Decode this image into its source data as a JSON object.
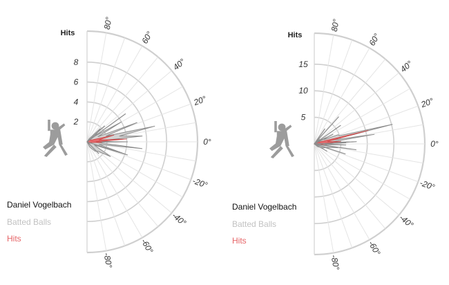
{
  "chart_data": [
    {
      "type": "radial-area",
      "player": "Daniel Vogelbach",
      "r_axis_title": "Hits",
      "r_ticks": [
        "2",
        "4",
        "6",
        "8"
      ],
      "r_max": 8,
      "angle_ticks": [
        "80°",
        "60°",
        "40°",
        "20°",
        "0°",
        "-20°",
        "-40°",
        "-60°",
        "-80°"
      ],
      "legend": [
        "Daniel Vogelbach",
        "Batted Balls",
        "Hits"
      ],
      "series": [
        {
          "name": "Batted Balls",
          "angles": [
            -62,
            -50,
            -40,
            -32,
            -24,
            -18,
            -12,
            -7,
            -3,
            0,
            3,
            6,
            10,
            13,
            17,
            21,
            25,
            30,
            36,
            45,
            55
          ],
          "values": [
            0.6,
            1.2,
            1.5,
            2.8,
            0.8,
            4.3,
            1.2,
            5.6,
            1.0,
            4.1,
            0.8,
            5.6,
            3.3,
            7.0,
            2.0,
            5.4,
            1.2,
            4.0,
            1.0,
            1.9,
            0.4
          ]
        },
        {
          "name": "Hits",
          "angles": [
            -40,
            -20,
            -8,
            -3,
            0,
            4,
            9,
            14,
            20,
            35
          ],
          "values": [
            0.2,
            0.4,
            0.4,
            1.5,
            0.9,
            4.0,
            1.2,
            2.8,
            0.6,
            0.3
          ]
        }
      ],
      "rays": [
        {
          "angle": 36,
          "value": 4.8
        },
        {
          "angle": 42,
          "value": 2.4
        },
        {
          "angle": -18,
          "value": 3.9
        },
        {
          "angle": -45,
          "value": 1.7
        }
      ]
    },
    {
      "type": "radial-area",
      "player": "Daniel Vogelbach",
      "r_axis_title": "Hits",
      "r_ticks": [
        "5",
        "10",
        "15"
      ],
      "r_max": 15,
      "angle_ticks": [
        "80°",
        "60°",
        "40°",
        "20°",
        "0°",
        "-20°",
        "-40°",
        "-60°",
        "-80°"
      ],
      "legend": [
        "Daniel Vogelbach",
        "Batted Balls",
        "Hits"
      ],
      "series": [
        {
          "name": "Batted Balls",
          "angles": [
            -40,
            -25,
            -15,
            -9,
            -5,
            -2,
            0,
            3,
            6,
            9,
            12,
            14,
            18,
            21,
            24,
            28,
            33,
            40
          ],
          "values": [
            0.8,
            1.8,
            2.6,
            4.5,
            1.5,
            6.0,
            2.0,
            8.0,
            3.0,
            11.5,
            3.4,
            15.2,
            5.0,
            4.8,
            2.0,
            2.6,
            1.0,
            1.2
          ]
        },
        {
          "name": "Hits",
          "angles": [
            -20,
            -5,
            0,
            5,
            10,
            14,
            18,
            30
          ],
          "values": [
            0.3,
            2.0,
            1.2,
            5.0,
            2.5,
            10.5,
            1.5,
            0.4
          ]
        }
      ],
      "rays": [
        {
          "angle": 48,
          "value": 6.9
        },
        {
          "angle": 35,
          "value": 6.1
        },
        {
          "angle": 55,
          "value": 3.5
        },
        {
          "angle": 27,
          "value": 4.0
        },
        {
          "angle": -8,
          "value": 8.0
        },
        {
          "angle": -18,
          "value": 6.2
        },
        {
          "angle": -30,
          "value": 2.8
        },
        {
          "angle": 2,
          "value": 6.0
        }
      ]
    }
  ]
}
